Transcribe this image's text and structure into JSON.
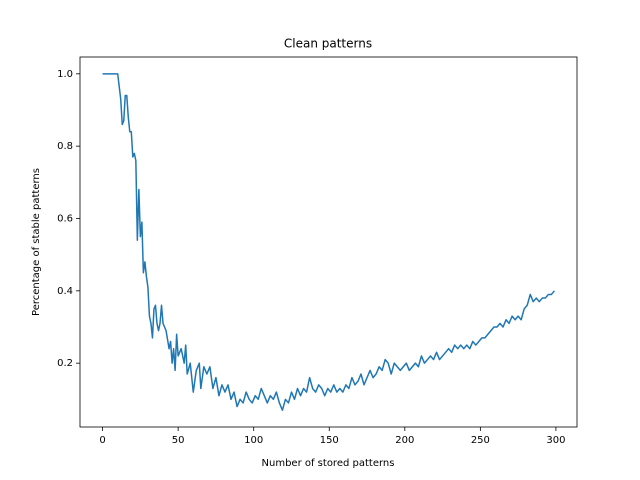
{
  "chart_data": {
    "type": "line",
    "title": "Clean patterns",
    "x_label": "Number of stored patterns",
    "y_label": "Percentage of stable patterns",
    "xlim": [
      -14.95,
      313.95
    ],
    "ylim": [
      0.0235,
      1.0465
    ],
    "xticks": [
      0,
      50,
      100,
      150,
      200,
      250,
      300
    ],
    "yticks": [
      0.2,
      0.4,
      0.6,
      0.8,
      {
        "value": 1,
        "label": "1.0"
      }
    ],
    "grid": false,
    "x": [
      0,
      5,
      10,
      12,
      13,
      14,
      15,
      16,
      17,
      18,
      19,
      20,
      21,
      22,
      23,
      24,
      25,
      26,
      27,
      28,
      29,
      30,
      31,
      32,
      33,
      34,
      35,
      36,
      37,
      38,
      39,
      40,
      42,
      44,
      45,
      46,
      47,
      48,
      49,
      50,
      52,
      54,
      55,
      56,
      58,
      60,
      62,
      64,
      65,
      67,
      69,
      71,
      73,
      75,
      77,
      79,
      81,
      83,
      85,
      87,
      89,
      91,
      93,
      95,
      97,
      99,
      101,
      103,
      105,
      107,
      109,
      111,
      113,
      115,
      117,
      119,
      121,
      123,
      125,
      127,
      129,
      131,
      133,
      135,
      137,
      139,
      141,
      143,
      145,
      147,
      149,
      151,
      153,
      155,
      157,
      159,
      161,
      163,
      165,
      167,
      169,
      171,
      173,
      175,
      177,
      179,
      181,
      183,
      185,
      187,
      189,
      191,
      193,
      195,
      197,
      199,
      201,
      203,
      205,
      207,
      209,
      211,
      213,
      215,
      217,
      219,
      221,
      223,
      225,
      227,
      229,
      231,
      233,
      235,
      237,
      239,
      241,
      243,
      245,
      247,
      249,
      251,
      253,
      255,
      257,
      259,
      261,
      263,
      265,
      267,
      269,
      271,
      273,
      275,
      277,
      279,
      281,
      283,
      285,
      287,
      289,
      291,
      293,
      295,
      297,
      299
    ],
    "series": [
      {
        "name": "Clean patterns",
        "color": "#1f77b4",
        "values": [
          1.0,
          1.0,
          1.0,
          0.93,
          0.86,
          0.87,
          0.94,
          0.94,
          0.88,
          0.84,
          0.84,
          0.77,
          0.78,
          0.76,
          0.54,
          0.68,
          0.55,
          0.59,
          0.45,
          0.48,
          0.44,
          0.41,
          0.33,
          0.31,
          0.27,
          0.35,
          0.36,
          0.31,
          0.29,
          0.31,
          0.36,
          0.31,
          0.29,
          0.24,
          0.26,
          0.2,
          0.24,
          0.18,
          0.28,
          0.22,
          0.24,
          0.2,
          0.25,
          0.17,
          0.2,
          0.12,
          0.18,
          0.2,
          0.13,
          0.19,
          0.17,
          0.19,
          0.13,
          0.16,
          0.11,
          0.14,
          0.12,
          0.14,
          0.1,
          0.12,
          0.08,
          0.1,
          0.09,
          0.12,
          0.1,
          0.09,
          0.11,
          0.1,
          0.13,
          0.11,
          0.09,
          0.11,
          0.1,
          0.12,
          0.09,
          0.07,
          0.1,
          0.09,
          0.12,
          0.1,
          0.13,
          0.11,
          0.13,
          0.12,
          0.16,
          0.13,
          0.12,
          0.14,
          0.13,
          0.11,
          0.13,
          0.12,
          0.14,
          0.12,
          0.13,
          0.12,
          0.14,
          0.13,
          0.16,
          0.14,
          0.15,
          0.17,
          0.14,
          0.16,
          0.18,
          0.16,
          0.17,
          0.19,
          0.18,
          0.21,
          0.2,
          0.17,
          0.2,
          0.19,
          0.18,
          0.19,
          0.2,
          0.18,
          0.19,
          0.2,
          0.19,
          0.22,
          0.2,
          0.21,
          0.22,
          0.21,
          0.23,
          0.21,
          0.22,
          0.23,
          0.24,
          0.23,
          0.25,
          0.24,
          0.25,
          0.24,
          0.25,
          0.24,
          0.26,
          0.25,
          0.26,
          0.27,
          0.27,
          0.28,
          0.29,
          0.3,
          0.3,
          0.31,
          0.3,
          0.32,
          0.31,
          0.33,
          0.32,
          0.33,
          0.32,
          0.35,
          0.36,
          0.39,
          0.37,
          0.38,
          0.37,
          0.38,
          0.38,
          0.39,
          0.39,
          0.4
        ]
      }
    ]
  }
}
